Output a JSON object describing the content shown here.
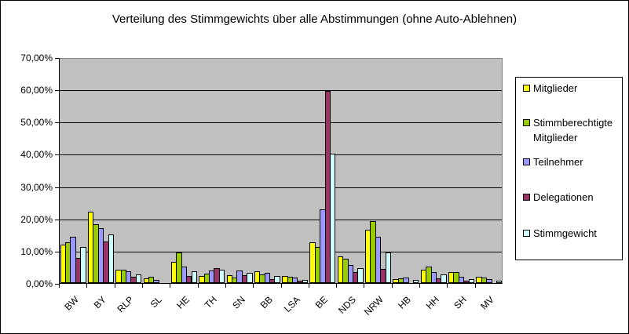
{
  "chart_data": {
    "type": "bar",
    "title": "Verteilung des Stimmgewichts über alle Abstimmungen (ohne Auto-Ablehnen)",
    "xlabel": "",
    "ylabel": "",
    "ylim": [
      0,
      70
    ],
    "yticks": [
      "0,00%",
      "10,00%",
      "20,00%",
      "30,00%",
      "40,00%",
      "50,00%",
      "60,00%",
      "70,00%"
    ],
    "grid": true,
    "legend_position": "right",
    "categories": [
      "BW",
      "BY",
      "RLP",
      "SL",
      "HE",
      "TH",
      "SN",
      "BB",
      "LSA",
      "BE",
      "NDS",
      "NRW",
      "HB",
      "HH",
      "SH",
      "MV"
    ],
    "series": [
      {
        "name": "Mitglieder",
        "color": "#ffff00",
        "values": [
          11.7,
          21.9,
          3.9,
          1.2,
          6.3,
          1.9,
          2.1,
          3.3,
          1.9,
          12.4,
          8.0,
          16.3,
          1.0,
          3.9,
          3.2,
          1.7
        ]
      },
      {
        "name": "Stimmberechtigte Mitglieder",
        "color": "#99cc00",
        "values": [
          12.4,
          18.0,
          3.9,
          1.7,
          9.2,
          2.6,
          1.4,
          2.4,
          1.7,
          10.9,
          7.3,
          19.0,
          1.2,
          4.9,
          3.2,
          1.5
        ]
      },
      {
        "name": "Teilnehmer",
        "color": "#9999ff",
        "values": [
          14.1,
          16.8,
          3.4,
          0.7,
          4.9,
          3.6,
          3.6,
          2.8,
          1.4,
          22.6,
          5.4,
          14.1,
          1.4,
          3.2,
          1.7,
          1.0
        ]
      },
      {
        "name": "Delegationen",
        "color": "#993366",
        "values": [
          7.5,
          12.6,
          1.7,
          0.0,
          2.0,
          4.4,
          2.1,
          1.0,
          0.4,
          59.3,
          3.2,
          4.1,
          0.0,
          1.2,
          0.5,
          0.0
        ]
      },
      {
        "name": "Stimmgewicht",
        "color": "#ccffff",
        "values": [
          10.9,
          14.8,
          2.4,
          0.1,
          3.4,
          3.9,
          2.8,
          1.9,
          0.7,
          39.9,
          4.4,
          9.2,
          0.7,
          2.4,
          0.9,
          0.5
        ]
      }
    ]
  },
  "legend": {
    "items": [
      {
        "label": "Mitglieder",
        "color": "#ffff00"
      },
      {
        "label": "Stimmberechtigte Mitglieder",
        "color": "#99cc00"
      },
      {
        "label": "Teilnehmer",
        "color": "#9999ff"
      },
      {
        "label": "Delegationen",
        "color": "#993366"
      },
      {
        "label": "Stimmgewicht",
        "color": "#ccffff"
      }
    ]
  }
}
